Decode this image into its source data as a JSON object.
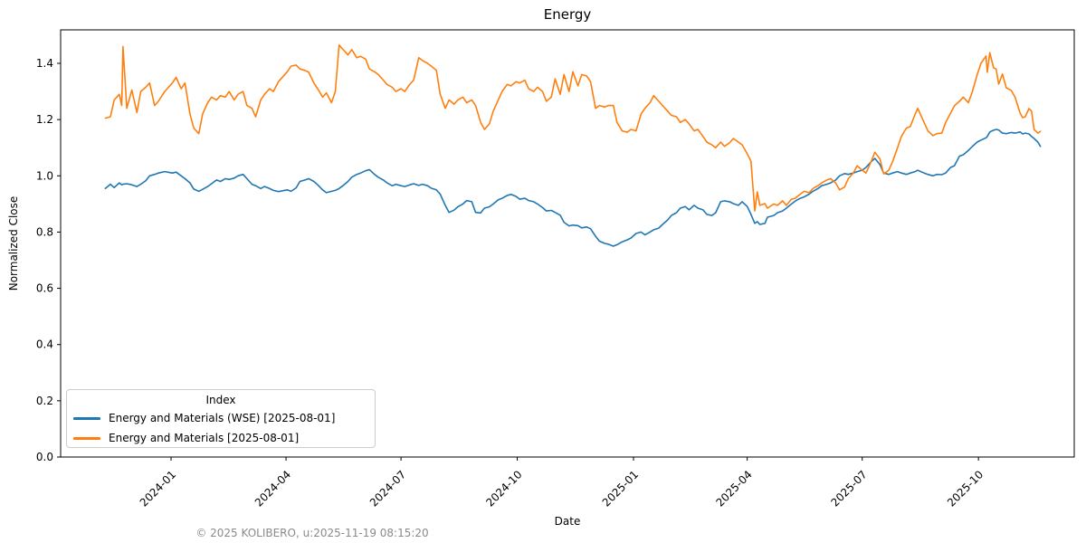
{
  "figure": {
    "title": "Energy",
    "xlabel": "Date",
    "ylabel": "Normalized Close",
    "footer": "© 2025 KOLIBERO, u:2025-11-19 08:15:20"
  },
  "legend": {
    "title": "Index",
    "position": "lower left"
  },
  "chart_data": {
    "type": "line",
    "title": "Energy",
    "xlabel": "Date",
    "ylabel": "Normalized Close",
    "grid": false,
    "ylim": [
      0.0,
      1.52
    ],
    "yticks": [
      0.0,
      0.2,
      0.4,
      0.6,
      0.8,
      1.0,
      1.2,
      1.4
    ],
    "xticks": [
      "2024-01",
      "2024-04",
      "2024-07",
      "2024-10",
      "2025-01",
      "2025-04",
      "2025-07",
      "2025-10"
    ],
    "x_range": [
      "2023-11-10",
      "2025-11-19"
    ],
    "legend_title": "Index",
    "legend_position": "lower left",
    "columns": [
      "date",
      "Energy and Materials (WSE) [2025-08-01]",
      "Energy and Materials [2025-08-01]"
    ],
    "series": [
      {
        "name": "Energy and Materials (WSE) [2025-08-01]",
        "color": "#1f77b4",
        "column": 1
      },
      {
        "name": "Energy and Materials [2025-08-01]",
        "color": "#ff7f0e",
        "column": 2
      }
    ],
    "rows": [
      [
        "2023-11-10",
        0.955,
        1.205
      ],
      [
        "2023-11-14",
        0.97,
        1.21
      ],
      [
        "2023-11-17",
        0.958,
        1.27
      ],
      [
        "2023-11-21",
        0.975,
        1.29
      ],
      [
        "2023-11-23",
        0.968,
        1.25
      ],
      [
        "2023-11-24",
        0.97,
        1.46
      ],
      [
        "2023-11-27",
        0.972,
        1.24
      ],
      [
        "2023-12-01",
        0.968,
        1.305
      ],
      [
        "2023-12-05",
        0.962,
        1.225
      ],
      [
        "2023-12-08",
        0.97,
        1.3
      ],
      [
        "2023-12-12",
        0.983,
        1.315
      ],
      [
        "2023-12-15",
        1.0,
        1.33
      ],
      [
        "2023-12-19",
        1.005,
        1.25
      ],
      [
        "2023-12-22",
        1.01,
        1.265
      ],
      [
        "2023-12-27",
        1.015,
        1.3
      ],
      [
        "2024-01-02",
        1.01,
        1.33
      ],
      [
        "2024-01-05",
        1.013,
        1.35
      ],
      [
        "2024-01-09",
        1.0,
        1.31
      ],
      [
        "2024-01-12",
        0.99,
        1.33
      ],
      [
        "2024-01-16",
        0.975,
        1.22
      ],
      [
        "2024-01-19",
        0.953,
        1.17
      ],
      [
        "2024-01-23",
        0.945,
        1.15
      ],
      [
        "2024-01-26",
        0.952,
        1.22
      ],
      [
        "2024-01-30",
        0.962,
        1.26
      ],
      [
        "2024-02-02",
        0.972,
        1.28
      ],
      [
        "2024-02-06",
        0.985,
        1.27
      ],
      [
        "2024-02-09",
        0.98,
        1.285
      ],
      [
        "2024-02-13",
        0.99,
        1.28
      ],
      [
        "2024-02-16",
        0.987,
        1.3
      ],
      [
        "2024-02-20",
        0.992,
        1.27
      ],
      [
        "2024-02-23",
        1.0,
        1.29
      ],
      [
        "2024-02-27",
        1.005,
        1.3
      ],
      [
        "2024-03-01",
        0.99,
        1.25
      ],
      [
        "2024-03-05",
        0.97,
        1.24
      ],
      [
        "2024-03-08",
        0.965,
        1.21
      ],
      [
        "2024-03-12",
        0.955,
        1.27
      ],
      [
        "2024-03-15",
        0.962,
        1.29
      ],
      [
        "2024-03-19",
        0.955,
        1.31
      ],
      [
        "2024-03-22",
        0.948,
        1.3
      ],
      [
        "2024-03-26",
        0.944,
        1.335
      ],
      [
        "2024-04-02",
        0.95,
        1.37
      ],
      [
        "2024-04-05",
        0.945,
        1.39
      ],
      [
        "2024-04-09",
        0.957,
        1.394
      ],
      [
        "2024-04-12",
        0.98,
        1.38
      ],
      [
        "2024-04-16",
        0.985,
        1.375
      ],
      [
        "2024-04-19",
        0.99,
        1.368
      ],
      [
        "2024-04-23",
        0.98,
        1.33
      ],
      [
        "2024-04-26",
        0.968,
        1.31
      ],
      [
        "2024-04-30",
        0.95,
        1.28
      ],
      [
        "2024-05-03",
        0.94,
        1.295
      ],
      [
        "2024-05-07",
        0.945,
        1.26
      ],
      [
        "2024-05-10",
        0.948,
        1.3
      ],
      [
        "2024-05-13",
        0.955,
        1.465
      ],
      [
        "2024-05-16",
        0.965,
        1.45
      ],
      [
        "2024-05-20",
        0.98,
        1.43
      ],
      [
        "2024-05-23",
        0.995,
        1.449
      ],
      [
        "2024-05-27",
        1.005,
        1.42
      ],
      [
        "2024-05-30",
        1.01,
        1.425
      ],
      [
        "2024-06-03",
        1.018,
        1.415
      ],
      [
        "2024-06-06",
        1.022,
        1.38
      ],
      [
        "2024-06-10",
        1.005,
        1.37
      ],
      [
        "2024-06-13",
        0.995,
        1.36
      ],
      [
        "2024-06-17",
        0.985,
        1.34
      ],
      [
        "2024-06-20",
        0.975,
        1.325
      ],
      [
        "2024-06-24",
        0.965,
        1.315
      ],
      [
        "2024-06-27",
        0.97,
        1.3
      ],
      [
        "2024-07-01",
        0.965,
        1.31
      ],
      [
        "2024-07-04",
        0.962,
        1.3
      ],
      [
        "2024-07-08",
        0.968,
        1.326
      ],
      [
        "2024-07-11",
        0.972,
        1.34
      ],
      [
        "2024-07-15",
        0.966,
        1.42
      ],
      [
        "2024-07-18",
        0.97,
        1.41
      ],
      [
        "2024-07-22",
        0.965,
        1.4
      ],
      [
        "2024-07-25",
        0.956,
        1.39
      ],
      [
        "2024-07-29",
        0.95,
        1.375
      ],
      [
        "2024-08-01",
        0.935,
        1.29
      ],
      [
        "2024-08-05",
        0.895,
        1.24
      ],
      [
        "2024-08-08",
        0.87,
        1.27
      ],
      [
        "2024-08-12",
        0.878,
        1.255
      ],
      [
        "2024-08-15",
        0.89,
        1.27
      ],
      [
        "2024-08-19",
        0.9,
        1.28
      ],
      [
        "2024-08-22",
        0.912,
        1.26
      ],
      [
        "2024-08-26",
        0.908,
        1.27
      ],
      [
        "2024-08-29",
        0.87,
        1.25
      ],
      [
        "2024-09-02",
        0.868,
        1.19
      ],
      [
        "2024-09-05",
        0.885,
        1.165
      ],
      [
        "2024-09-09",
        0.89,
        1.185
      ],
      [
        "2024-09-12",
        0.9,
        1.23
      ],
      [
        "2024-09-16",
        0.915,
        1.27
      ],
      [
        "2024-09-19",
        0.92,
        1.3
      ],
      [
        "2024-09-23",
        0.93,
        1.325
      ],
      [
        "2024-09-26",
        0.934,
        1.32
      ],
      [
        "2024-09-30",
        0.927,
        1.335
      ],
      [
        "2024-10-03",
        0.917,
        1.33
      ],
      [
        "2024-10-07",
        0.92,
        1.34
      ],
      [
        "2024-10-10",
        0.912,
        1.31
      ],
      [
        "2024-10-14",
        0.908,
        1.3
      ],
      [
        "2024-10-17",
        0.9,
        1.315
      ],
      [
        "2024-10-21",
        0.887,
        1.3
      ],
      [
        "2024-10-24",
        0.875,
        1.265
      ],
      [
        "2024-10-28",
        0.877,
        1.28
      ],
      [
        "2024-10-31",
        0.87,
        1.345
      ],
      [
        "2024-11-04",
        0.86,
        1.29
      ],
      [
        "2024-11-07",
        0.835,
        1.36
      ],
      [
        "2024-11-11",
        0.822,
        1.3
      ],
      [
        "2024-11-14",
        0.825,
        1.37
      ],
      [
        "2024-11-18",
        0.823,
        1.32
      ],
      [
        "2024-11-21",
        0.815,
        1.36
      ],
      [
        "2024-11-25",
        0.818,
        1.355
      ],
      [
        "2024-11-28",
        0.812,
        1.335
      ],
      [
        "2024-12-02",
        0.785,
        1.24
      ],
      [
        "2024-12-05",
        0.768,
        1.25
      ],
      [
        "2024-12-09",
        0.76,
        1.245
      ],
      [
        "2024-12-12",
        0.757,
        1.25
      ],
      [
        "2024-12-16",
        0.75,
        1.25
      ],
      [
        "2024-12-19",
        0.755,
        1.19
      ],
      [
        "2024-12-23",
        0.765,
        1.16
      ],
      [
        "2024-12-27",
        0.772,
        1.155
      ],
      [
        "2024-12-30",
        0.779,
        1.165
      ],
      [
        "2025-01-03",
        0.795,
        1.16
      ],
      [
        "2025-01-07",
        0.8,
        1.22
      ],
      [
        "2025-01-10",
        0.79,
        1.24
      ],
      [
        "2025-01-14",
        0.8,
        1.26
      ],
      [
        "2025-01-17",
        0.808,
        1.285
      ],
      [
        "2025-01-21",
        0.814,
        1.265
      ],
      [
        "2025-01-24",
        0.827,
        1.25
      ],
      [
        "2025-01-28",
        0.843,
        1.23
      ],
      [
        "2025-01-31",
        0.859,
        1.215
      ],
      [
        "2025-02-04",
        0.869,
        1.21
      ],
      [
        "2025-02-07",
        0.885,
        1.19
      ],
      [
        "2025-02-11",
        0.891,
        1.2
      ],
      [
        "2025-02-14",
        0.879,
        1.185
      ],
      [
        "2025-02-18",
        0.895,
        1.16
      ],
      [
        "2025-02-21",
        0.885,
        1.165
      ],
      [
        "2025-02-25",
        0.879,
        1.14
      ],
      [
        "2025-02-28",
        0.863,
        1.12
      ],
      [
        "2025-03-04",
        0.859,
        1.11
      ],
      [
        "2025-03-07",
        0.869,
        1.1
      ],
      [
        "2025-03-11",
        0.908,
        1.12
      ],
      [
        "2025-03-14",
        0.911,
        1.105
      ],
      [
        "2025-03-18",
        0.908,
        1.117
      ],
      [
        "2025-03-21",
        0.901,
        1.133
      ],
      [
        "2025-03-25",
        0.895,
        1.12
      ],
      [
        "2025-03-28",
        0.908,
        1.11
      ],
      [
        "2025-04-01",
        0.891,
        1.078
      ],
      [
        "2025-04-04",
        0.863,
        1.052
      ],
      [
        "2025-04-07",
        0.831,
        0.875
      ],
      [
        "2025-04-09",
        0.837,
        0.943
      ],
      [
        "2025-04-11",
        0.827,
        0.895
      ],
      [
        "2025-04-15",
        0.831,
        0.901
      ],
      [
        "2025-04-17",
        0.853,
        0.885
      ],
      [
        "2025-04-22",
        0.859,
        0.9
      ],
      [
        "2025-04-25",
        0.869,
        0.895
      ],
      [
        "2025-04-29",
        0.875,
        0.911
      ],
      [
        "2025-05-02",
        0.885,
        0.895
      ],
      [
        "2025-05-06",
        0.9,
        0.917
      ],
      [
        "2025-05-09",
        0.91,
        0.92
      ],
      [
        "2025-05-13",
        0.92,
        0.935
      ],
      [
        "2025-05-16",
        0.925,
        0.945
      ],
      [
        "2025-05-20",
        0.935,
        0.94
      ],
      [
        "2025-05-23",
        0.945,
        0.955
      ],
      [
        "2025-05-27",
        0.955,
        0.965
      ],
      [
        "2025-05-30",
        0.965,
        0.975
      ],
      [
        "2025-06-03",
        0.97,
        0.985
      ],
      [
        "2025-06-06",
        0.975,
        0.99
      ],
      [
        "2025-06-10",
        0.985,
        0.975
      ],
      [
        "2025-06-13",
        1.0,
        0.95
      ],
      [
        "2025-06-17",
        1.008,
        0.96
      ],
      [
        "2025-06-20",
        1.005,
        0.99
      ],
      [
        "2025-06-24",
        1.01,
        1.01
      ],
      [
        "2025-06-27",
        1.015,
        1.036
      ],
      [
        "2025-07-01",
        1.02,
        1.02
      ],
      [
        "2025-07-04",
        1.03,
        1.01
      ],
      [
        "2025-07-08",
        1.05,
        1.05
      ],
      [
        "2025-07-11",
        1.062,
        1.084
      ],
      [
        "2025-07-15",
        1.04,
        1.06
      ],
      [
        "2025-07-18",
        1.01,
        1.007
      ],
      [
        "2025-07-22",
        1.005,
        1.02
      ],
      [
        "2025-07-25",
        1.01,
        1.05
      ],
      [
        "2025-07-29",
        1.015,
        1.1
      ],
      [
        "2025-08-01",
        1.01,
        1.14
      ],
      [
        "2025-08-05",
        1.005,
        1.17
      ],
      [
        "2025-08-08",
        1.01,
        1.175
      ],
      [
        "2025-08-12",
        1.015,
        1.22
      ],
      [
        "2025-08-14",
        1.02,
        1.24
      ],
      [
        "2025-08-19",
        1.01,
        1.19
      ],
      [
        "2025-08-22",
        1.005,
        1.16
      ],
      [
        "2025-08-26",
        1.0,
        1.143
      ],
      [
        "2025-08-29",
        1.005,
        1.15
      ],
      [
        "2025-09-02",
        1.004,
        1.152
      ],
      [
        "2025-09-05",
        1.01,
        1.19
      ],
      [
        "2025-09-09",
        1.03,
        1.223
      ],
      [
        "2025-09-12",
        1.036,
        1.249
      ],
      [
        "2025-09-16",
        1.07,
        1.265
      ],
      [
        "2025-09-19",
        1.075,
        1.28
      ],
      [
        "2025-09-23",
        1.09,
        1.26
      ],
      [
        "2025-09-26",
        1.104,
        1.297
      ],
      [
        "2025-09-30",
        1.12,
        1.36
      ],
      [
        "2025-10-03",
        1.127,
        1.4
      ],
      [
        "2025-10-07",
        1.135,
        1.426
      ],
      [
        "2025-10-08",
        1.14,
        1.368
      ],
      [
        "2025-10-10",
        1.156,
        1.438
      ],
      [
        "2025-10-13",
        1.162,
        1.384
      ],
      [
        "2025-10-15",
        1.165,
        1.38
      ],
      [
        "2025-10-17",
        1.163,
        1.326
      ],
      [
        "2025-10-20",
        1.152,
        1.362
      ],
      [
        "2025-10-23",
        1.15,
        1.313
      ],
      [
        "2025-10-27",
        1.154,
        1.303
      ],
      [
        "2025-10-30",
        1.152,
        1.28
      ],
      [
        "2025-11-03",
        1.156,
        1.223
      ],
      [
        "2025-11-05",
        1.149,
        1.207
      ],
      [
        "2025-11-07",
        1.152,
        1.21
      ],
      [
        "2025-11-10",
        1.149,
        1.239
      ],
      [
        "2025-11-12",
        1.14,
        1.23
      ],
      [
        "2025-11-14",
        1.133,
        1.165
      ],
      [
        "2025-11-17",
        1.12,
        1.152
      ],
      [
        "2025-11-19",
        1.105,
        1.158
      ]
    ]
  }
}
